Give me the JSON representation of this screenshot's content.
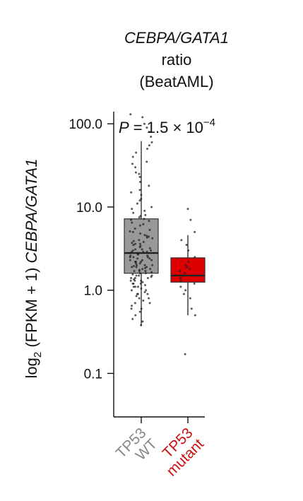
{
  "chart_data": {
    "type": "box",
    "title_lines": [
      "CEBPA/GATA1",
      "ratio",
      "(BeatAML)"
    ],
    "ylabel": {
      "prefix": "log",
      "subscript": "2",
      "middle": " (FPKM + 1) ",
      "italic": "CEBPA/GATA1"
    },
    "yscale": "log",
    "ylim": [
      0.03,
      140
    ],
    "yticks": [
      {
        "value": 100,
        "label": "100.0"
      },
      {
        "value": 10,
        "label": "10.0"
      },
      {
        "value": 1,
        "label": "1.0"
      },
      {
        "value": 0.1,
        "label": "0.1"
      }
    ],
    "annotation": {
      "prefix": "P",
      "middle": " = 1.5 × 10",
      "exponent": "−4"
    },
    "categories": [
      {
        "lines": [
          "TP53",
          "WT"
        ],
        "color": "#888888"
      },
      {
        "lines": [
          "TP53",
          "mutant"
        ],
        "color": "#cc1111"
      }
    ],
    "boxes": [
      {
        "q1": 1.6,
        "median": 2.8,
        "q3": 7.2,
        "whisker_low": 0.37,
        "whisker_high": 62,
        "fill": "#999999",
        "point_color": "#222222",
        "points": [
          0.38,
          0.42,
          0.45,
          0.5,
          0.55,
          0.6,
          0.65,
          0.7,
          0.75,
          0.8,
          0.85,
          0.9,
          0.95,
          1.0,
          1.05,
          1.1,
          1.15,
          1.2,
          1.25,
          1.3,
          1.35,
          1.4,
          1.45,
          1.5,
          1.55,
          1.6,
          1.65,
          1.7,
          1.75,
          1.8,
          1.85,
          1.9,
          1.95,
          2.0,
          2.1,
          2.2,
          2.3,
          2.4,
          2.5,
          2.6,
          2.7,
          2.8,
          2.9,
          3.0,
          3.1,
          3.2,
          3.4,
          3.6,
          3.8,
          4.0,
          4.3,
          4.6,
          5.0,
          5.5,
          6.0,
          6.5,
          7.0,
          7.5,
          8.0,
          9.0,
          10,
          11,
          12,
          14,
          16,
          18,
          20,
          23,
          26,
          30,
          35,
          40,
          45,
          50,
          55,
          60,
          70,
          80,
          90,
          100,
          120,
          130,
          0.9,
          1.1,
          1.3,
          1.5,
          1.7,
          1.9,
          2.1,
          2.3,
          2.5,
          2.7,
          2.9,
          3.3,
          3.7,
          4.2,
          4.8,
          5.3,
          6.2,
          7.8,
          1.2,
          1.4,
          1.8,
          2.2,
          2.6,
          3.5,
          1.0,
          1.6,
          2.0,
          2.4,
          0.7,
          0.8,
          1.1,
          1.3,
          1.9,
          2.8,
          3.1,
          4.4,
          6.8,
          8.5,
          12.5,
          15,
          1.5,
          2.2,
          0.6,
          0.9,
          1.4,
          2.0,
          2.5,
          3.0,
          3.9,
          5.1,
          7.2,
          9.5,
          25,
          33,
          1.2,
          1.7,
          2.3,
          2.9,
          3.6,
          4.5
        ]
      },
      {
        "q1": 1.25,
        "median": 1.5,
        "q3": 2.45,
        "whisker_low": 0.5,
        "whisker_high": 4.6,
        "fill": "#dd0000",
        "point_color": "#222222",
        "points": [
          0.17,
          0.5,
          0.6,
          0.8,
          0.9,
          1.0,
          1.1,
          1.2,
          1.3,
          1.4,
          1.5,
          1.6,
          1.7,
          1.8,
          1.9,
          2.0,
          2.2,
          2.5,
          3.0,
          3.5,
          4.0,
          5.0,
          7.0,
          9.5
        ]
      }
    ],
    "grid": false,
    "legend": "none"
  }
}
